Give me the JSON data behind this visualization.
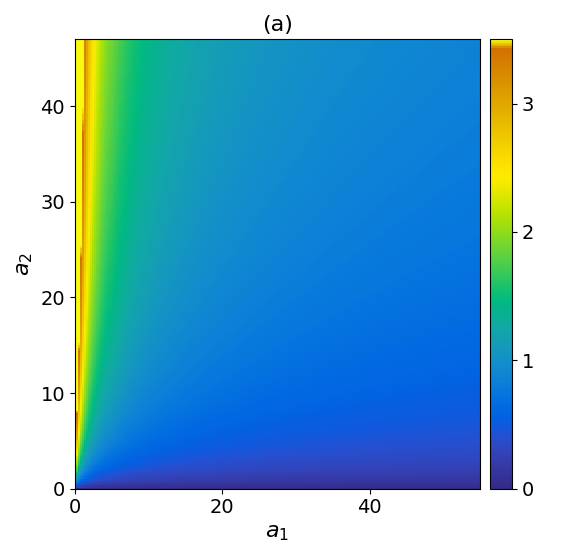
{
  "title": "(a)",
  "xlabel": "$a_1$",
  "ylabel": "$a_2$",
  "xlim": [
    0,
    55
  ],
  "ylim": [
    0,
    47
  ],
  "xticks": [
    0,
    20,
    40
  ],
  "yticks": [
    0,
    10,
    20,
    30,
    40
  ],
  "clim": [
    0,
    3.5
  ],
  "colorbar_ticks": [
    0,
    1,
    2,
    3
  ],
  "colormap": "parula",
  "title_fontsize": 16,
  "label_fontsize": 16,
  "tick_fontsize": 14,
  "figsize": [
    5.78,
    5.58
  ],
  "dpi": 100
}
